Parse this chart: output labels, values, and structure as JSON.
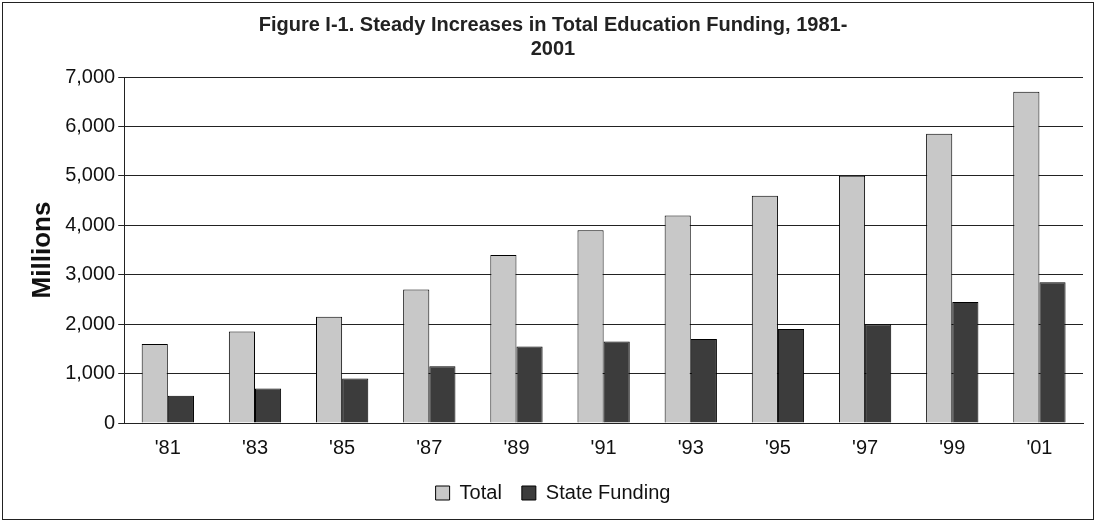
{
  "chart_data": {
    "type": "bar",
    "title": "Figure I-1. Steady Increases in Total Education Funding, 1981-\n2001",
    "ylabel": "Millions",
    "categories": [
      "'81",
      "'83",
      "'85",
      "'87",
      "'89",
      "'91",
      "'93",
      "'95",
      "'97",
      "'99",
      "'01"
    ],
    "series": [
      {
        "name": "Total",
        "color": "#c8c8c8",
        "values": [
          1600,
          1850,
          2150,
          2700,
          3400,
          3900,
          4200,
          4600,
          5000,
          5850,
          6700
        ]
      },
      {
        "name": "State Funding",
        "color": "#3c3c3c",
        "values": [
          550,
          700,
          900,
          1150,
          1550,
          1650,
          1700,
          1900,
          2000,
          2450,
          2850
        ]
      }
    ],
    "ylim": [
      0,
      7000
    ],
    "yticks": [
      {
        "value": 0,
        "label": "0"
      },
      {
        "value": 1000,
        "label": "1,000"
      },
      {
        "value": 2000,
        "label": "2,000"
      },
      {
        "value": 3000,
        "label": "3,000"
      },
      {
        "value": 4000,
        "label": "4,000"
      },
      {
        "value": 5000,
        "label": "5,000"
      },
      {
        "value": 6000,
        "label": "6,000"
      },
      {
        "value": 7000,
        "label": "7,000"
      }
    ],
    "grid": "y",
    "legend": "bottom"
  }
}
